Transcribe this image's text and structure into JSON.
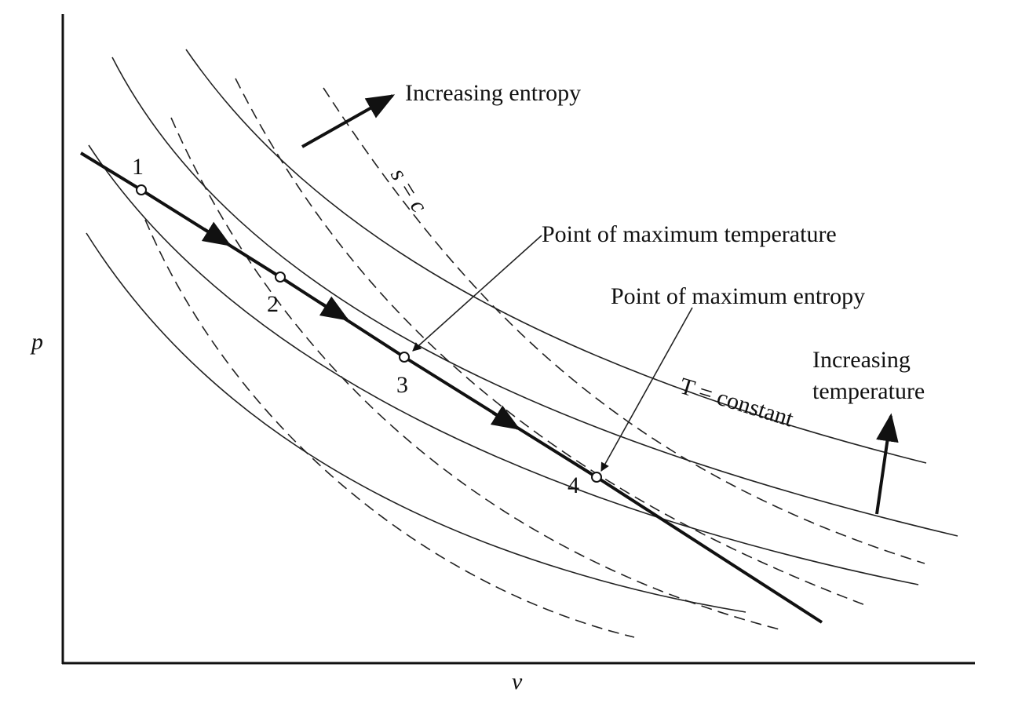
{
  "axes": {
    "y_label": "p",
    "x_label": "v"
  },
  "annotations": {
    "increasing_entropy": "Increasing entropy",
    "isentrope": "s = c",
    "max_temperature": "Point of maximum temperature",
    "max_entropy": "Point of maximum entropy",
    "increasing_temperature": [
      "Increasing",
      "temperature"
    ],
    "isotherm": "T = constant"
  },
  "points": [
    {
      "label": "1"
    },
    {
      "label": "2"
    },
    {
      "label": "3"
    },
    {
      "label": "4"
    }
  ]
}
